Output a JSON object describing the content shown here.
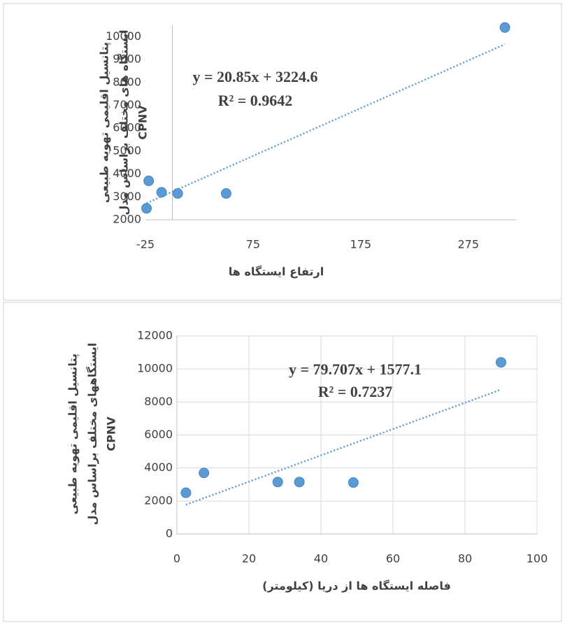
{
  "chart_data": [
    {
      "type": "scatter",
      "xlabel": "ارتفاع ایستگاه ها",
      "ylabel": [
        "پتانسیل اقلیمی تهویه طبیعی",
        "ایستگاه های مختلف براساس مدل",
        "CPNV"
      ],
      "x": [
        -24,
        -22,
        -10,
        5,
        50,
        309
      ],
      "values": [
        2500,
        3700,
        3200,
        3150,
        3150,
        10400
      ],
      "color": "#5b9bd5",
      "xlim": [
        -25,
        320
      ],
      "xticks": [
        -25,
        75,
        175,
        275
      ],
      "ylim": [
        2000,
        10500
      ],
      "yticks": [
        2000,
        3000,
        4000,
        5000,
        6000,
        7000,
        8000,
        9000,
        10000
      ],
      "grid": false,
      "trendline": {
        "slope": 20.85,
        "intercept": 3224.6,
        "equation": "y = 20.85x + 3224.6",
        "r2": "R² = 0.9642"
      }
    },
    {
      "type": "scatter",
      "xlabel": "فاصله ایستگاه ها از دریا (کیلومتر)",
      "ylabel": [
        "پتانسیل اقلیمی تهویه طبیعی",
        "ایستگاههای مختلف براساس مدل",
        "CPNV"
      ],
      "x": [
        2.5,
        7.5,
        28,
        34,
        49,
        90
      ],
      "values": [
        2500,
        3700,
        3150,
        3150,
        3120,
        10400
      ],
      "color": "#5b9bd5",
      "xlim": [
        0,
        100
      ],
      "xticks": [
        0,
        20,
        40,
        60,
        80,
        100
      ],
      "ylim": [
        0,
        12000
      ],
      "yticks": [
        0,
        2000,
        4000,
        6000,
        8000,
        10000,
        12000
      ],
      "grid": true,
      "trendline": {
        "slope": 79.707,
        "intercept": 1577.1,
        "equation": "y = 79.707x + 1577.1",
        "r2": "R² = 0.7237"
      }
    }
  ]
}
